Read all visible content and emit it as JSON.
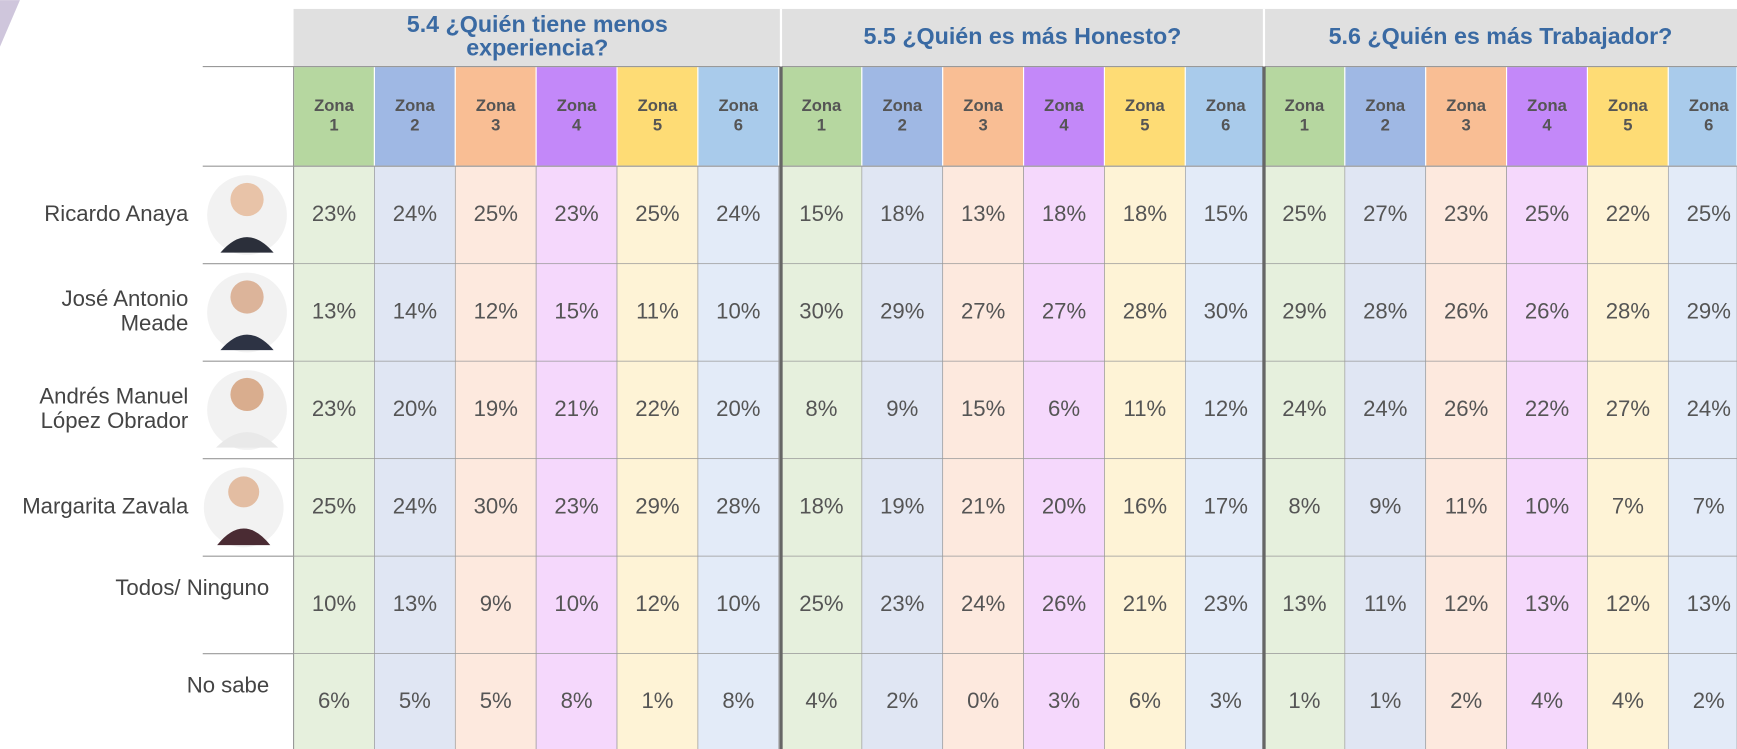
{
  "groups": [
    {
      "title": [
        "5.4 ¿Quién tiene menos",
        "experiencia?"
      ],
      "zones": [
        [
          "Zona",
          "1"
        ],
        [
          "Zona",
          "2"
        ],
        [
          "Zona",
          "3"
        ],
        [
          "Zona",
          "4"
        ],
        [
          "Zona",
          "5"
        ],
        [
          "Zona",
          "6"
        ]
      ]
    },
    {
      "title": [
        "5.5 ¿Quién es más Honesto?"
      ],
      "zones": [
        [
          "Zona",
          "1"
        ],
        [
          "Zona",
          "2"
        ],
        [
          "Zona",
          "3"
        ],
        [
          "Zona",
          "4"
        ],
        [
          "Zona",
          "5"
        ],
        [
          "Zona",
          "6"
        ]
      ]
    },
    {
      "title": [
        "5.6 ¿Quién es más Trabajador?"
      ],
      "zones": [
        [
          "Zona",
          "1"
        ],
        [
          "Zona",
          "2"
        ],
        [
          "Zona",
          "3"
        ],
        [
          "Zona",
          "4"
        ],
        [
          "Zona",
          "5"
        ],
        [
          "Zona",
          "6"
        ]
      ]
    }
  ],
  "rows": [
    {
      "label": [
        "Ricardo Anaya"
      ],
      "values": [
        "23%",
        "24%",
        "25%",
        "23%",
        "25%",
        "24%",
        "15%",
        "18%",
        "13%",
        "18%",
        "18%",
        "15%",
        "25%",
        "27%",
        "23%",
        "25%",
        "22%",
        "25%"
      ]
    },
    {
      "label": [
        "José Antonio",
        "Meade"
      ],
      "values": [
        "13%",
        "14%",
        "12%",
        "15%",
        "11%",
        "10%",
        "30%",
        "29%",
        "27%",
        "27%",
        "28%",
        "30%",
        "29%",
        "28%",
        "26%",
        "26%",
        "28%",
        "29%"
      ]
    },
    {
      "label": [
        "Andrés Manuel",
        "López Obrador"
      ],
      "values": [
        "23%",
        "20%",
        "19%",
        "21%",
        "22%",
        "20%",
        "8%",
        "9%",
        "15%",
        "6%",
        "11%",
        "12%",
        "24%",
        "24%",
        "26%",
        "22%",
        "27%",
        "24%"
      ]
    },
    {
      "label": [
        "Margarita Zavala"
      ],
      "values": [
        "25%",
        "24%",
        "30%",
        "23%",
        "29%",
        "28%",
        "18%",
        "19%",
        "21%",
        "20%",
        "16%",
        "17%",
        "8%",
        "9%",
        "11%",
        "10%",
        "7%",
        "7%"
      ]
    },
    {
      "label": [
        "Todos/ Ninguno"
      ],
      "values": [
        "10%",
        "13%",
        "9%",
        "10%",
        "12%",
        "10%",
        "25%",
        "23%",
        "24%",
        "26%",
        "21%",
        "23%",
        "13%",
        "11%",
        "12%",
        "13%",
        "12%",
        "13%"
      ]
    },
    {
      "label": [
        "No sabe"
      ],
      "values": [
        "6%",
        "5%",
        "5%",
        "8%",
        "1%",
        "8%",
        "4%",
        "2%",
        "0%",
        "3%",
        "6%",
        "3%",
        "1%",
        "1%",
        "2%",
        "4%",
        "4%",
        "2%"
      ]
    }
  ]
}
